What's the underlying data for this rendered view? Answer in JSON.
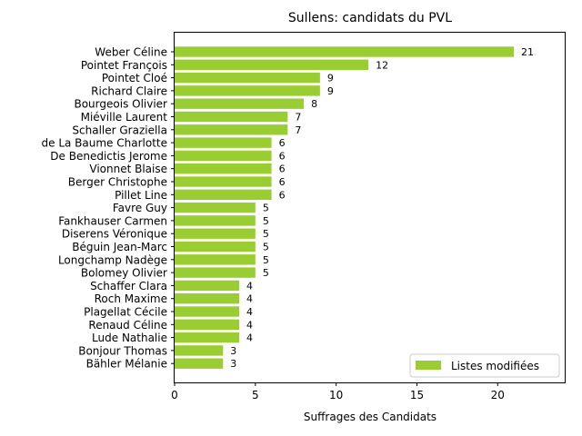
{
  "chart_data": {
    "type": "bar",
    "orientation": "horizontal",
    "title": "Sullens: candidats du PVL",
    "xlabel": "Suffrages des Candidats",
    "ylabel": "",
    "xlim": [
      0,
      24.15
    ],
    "xticks": [
      0,
      5,
      10,
      15,
      20
    ],
    "grid": false,
    "legend_position": "lower-right",
    "bar_color": "#9acd32",
    "categories": [
      "Weber Céline",
      "Pointet François",
      "Pointet Cloé",
      "Richard Claire",
      "Bourgeois Olivier",
      "Miéville Laurent",
      "Schaller Graziella",
      "de La Baume Charlotte",
      "De Benedictis Jerome",
      "Vionnet Blaise",
      "Berger Christophe",
      "Pillet Line",
      "Favre Guy",
      "Fankhauser Carmen",
      "Diserens Véronique",
      "Béguin Jean-Marc",
      "Longchamp Nadège",
      "Bolomey Olivier",
      "Schaffer Clara",
      "Roch Maxime",
      "Plagellat Cécile",
      "Renaud Céline",
      "Lude Nathalie",
      "Bonjour Thomas",
      "Bähler Mélanie"
    ],
    "series": [
      {
        "name": "Listes modifiées",
        "values": [
          21,
          12,
          9,
          9,
          8,
          7,
          7,
          6,
          6,
          6,
          6,
          6,
          5,
          5,
          5,
          5,
          5,
          5,
          4,
          4,
          4,
          4,
          4,
          3,
          3
        ]
      }
    ]
  }
}
